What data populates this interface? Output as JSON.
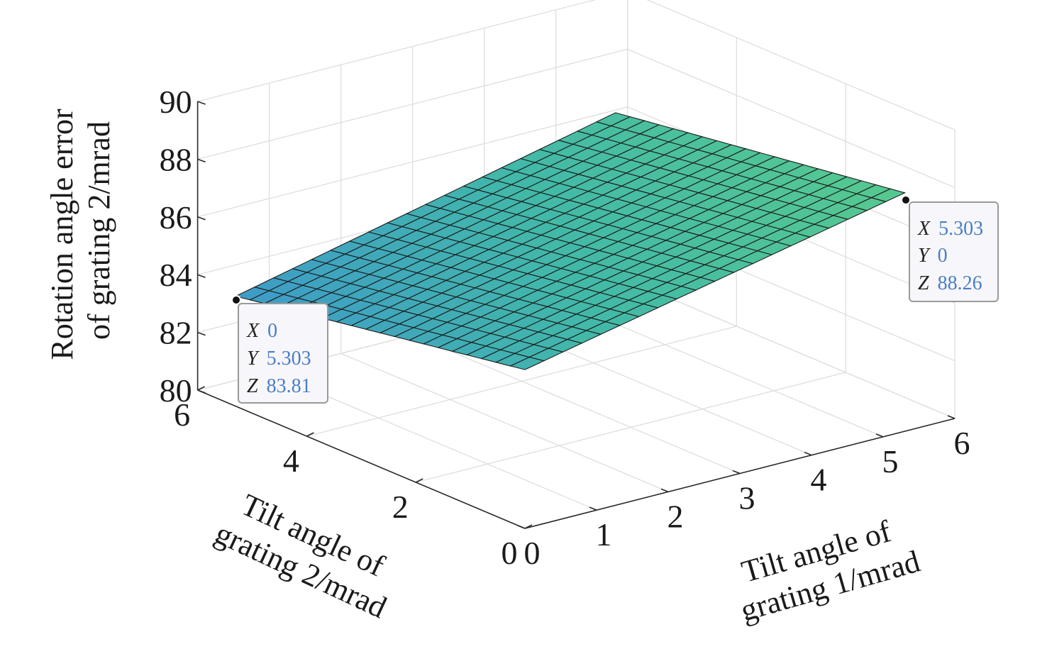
{
  "chart_data": {
    "type": "surface",
    "x_label_lines": [
      "Tilt angle of",
      "grating 1/mrad"
    ],
    "y_label_lines": [
      "Tilt angle of",
      "grating 2/mrad"
    ],
    "z_label_lines": [
      "Rotation angle error",
      "of grating 2/mrad"
    ],
    "x_ticks": [
      "0",
      "1",
      "2",
      "3",
      "4",
      "5",
      "6"
    ],
    "y_ticks": [
      "0",
      "2",
      "4",
      "6"
    ],
    "z_ticks": [
      "80",
      "82",
      "84",
      "86",
      "88",
      "90"
    ],
    "xlim": [
      0,
      6
    ],
    "ylim": [
      0,
      6
    ],
    "zlim": [
      80,
      90
    ],
    "grid": true,
    "surface_range": {
      "x": [
        0,
        5.303
      ],
      "y": [
        0,
        5.303
      ]
    },
    "surface_corners_z": {
      "x0_y0": 85.5,
      "x_max_y0": 88.26,
      "x0_y_max": 83.81,
      "x_max_y_max": 86.8
    },
    "mesh_divisions": 20,
    "colormap": [
      "#3e9bc8",
      "#42b9a8",
      "#56c98f"
    ],
    "datatips": [
      {
        "x": "0",
        "y": "5.303",
        "z": "83.81"
      },
      {
        "x": "5.303",
        "y": "0",
        "z": "88.26"
      }
    ],
    "datatip_keys": [
      "X",
      "Y",
      "Z"
    ]
  }
}
